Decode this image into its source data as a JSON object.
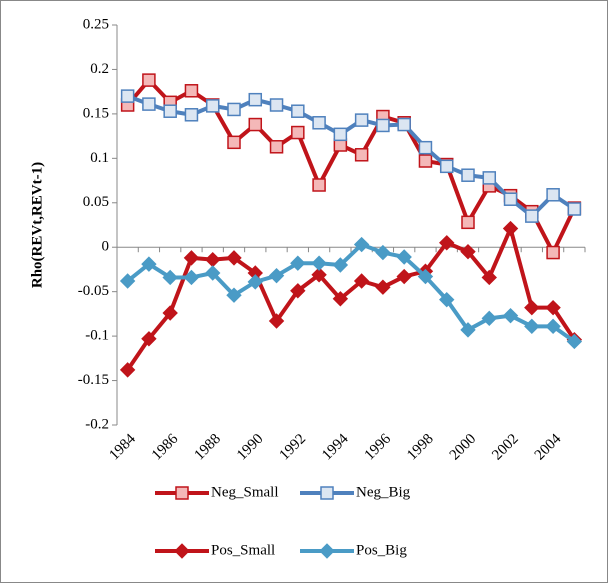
{
  "chart_data": {
    "type": "line",
    "y_label": "Rho(REVt,REVt-1)",
    "categories": [
      "1984",
      null,
      "1986",
      null,
      "1988",
      null,
      "1990",
      null,
      "1992",
      null,
      "1994",
      null,
      "1996",
      null,
      "1998",
      null,
      "2000",
      null,
      "2002",
      null,
      "2004",
      null
    ],
    "ylim": [
      -0.2,
      0.25
    ],
    "yticks": [
      0.25,
      0.2,
      0.15,
      0.1,
      0.05,
      0,
      -0.05,
      -0.1,
      -0.15,
      -0.2
    ],
    "grid": false,
    "legend": "bottom",
    "series": [
      {
        "name": "Neg_Small",
        "color": "#c0141a",
        "marker": "square",
        "marker_fill": "#f4b8b8",
        "values": [
          0.16,
          0.188,
          0.163,
          0.176,
          0.16,
          0.118,
          0.138,
          0.113,
          0.129,
          0.07,
          0.115,
          0.104,
          0.147,
          0.14,
          0.097,
          0.093,
          0.028,
          0.069,
          0.058,
          0.04,
          -0.006,
          0.044
        ]
      },
      {
        "name": "Neg_Big",
        "color": "#4f81bd",
        "marker": "square",
        "marker_fill": "#dce6f2",
        "values": [
          0.17,
          0.161,
          0.153,
          0.149,
          0.159,
          0.155,
          0.166,
          0.16,
          0.153,
          0.14,
          0.127,
          0.143,
          0.137,
          0.138,
          0.112,
          0.091,
          0.081,
          0.078,
          0.054,
          0.035,
          0.059,
          0.043
        ]
      },
      {
        "name": "Pos_Small",
        "color": "#c0141a",
        "marker": "diamond",
        "marker_fill": "#c0141a",
        "values": [
          -0.138,
          -0.103,
          -0.074,
          -0.012,
          -0.014,
          -0.012,
          -0.029,
          -0.083,
          -0.049,
          -0.031,
          -0.058,
          -0.038,
          -0.045,
          -0.033,
          -0.027,
          0.005,
          -0.005,
          -0.034,
          0.021,
          -0.068,
          -0.068,
          -0.104
        ]
      },
      {
        "name": "Pos_Big",
        "color": "#4a9bc6",
        "marker": "diamond",
        "marker_fill": "#4a9bc6",
        "values": [
          -0.038,
          -0.019,
          -0.034,
          -0.034,
          -0.029,
          -0.054,
          -0.039,
          -0.032,
          -0.018,
          -0.018,
          -0.02,
          0.003,
          -0.006,
          -0.011,
          -0.033,
          -0.059,
          -0.093,
          -0.08,
          -0.077,
          -0.089,
          -0.089,
          -0.106
        ]
      }
    ]
  }
}
